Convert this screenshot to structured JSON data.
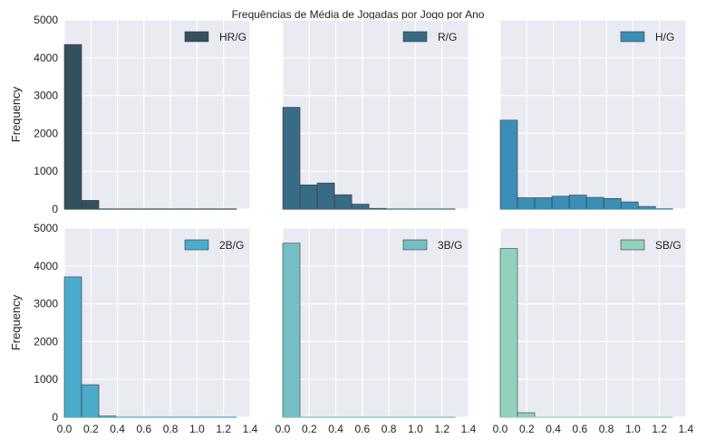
{
  "chart_data": {
    "type": "bar",
    "title": "Frequências de Média de Jogadas por Jogo por Ano",
    "ylabel": "Frequency",
    "xlim": [
      0.0,
      1.4
    ],
    "ylim": [
      0,
      5000
    ],
    "xticks": [
      "0.0",
      "0.2",
      "0.4",
      "0.6",
      "0.8",
      "1.0",
      "1.2",
      "1.4"
    ],
    "yticks": [
      "0",
      "1000",
      "2000",
      "3000",
      "4000",
      "5000"
    ],
    "grid": true,
    "legend_position": "top-right",
    "bin_edges": [
      0.0,
      0.13,
      0.26,
      0.39,
      0.52,
      0.65,
      0.78,
      0.91,
      1.04,
      1.17,
      1.3
    ],
    "series": [
      {
        "name": "HR/G",
        "color": "#34505e",
        "values": [
          4350,
          230,
          0,
          0,
          0,
          0,
          0,
          0,
          0,
          0
        ]
      },
      {
        "name": "R/G",
        "color": "#386b85",
        "values": [
          2690,
          640,
          690,
          380,
          130,
          20,
          0,
          0,
          0,
          0
        ]
      },
      {
        "name": "H/G",
        "color": "#3b8eb5",
        "values": [
          2350,
          300,
          300,
          340,
          370,
          310,
          280,
          190,
          70,
          10
        ]
      },
      {
        "name": "2B/G",
        "color": "#4aabca",
        "values": [
          3710,
          860,
          30,
          0,
          0,
          0,
          0,
          0,
          0,
          0
        ]
      },
      {
        "name": "3B/G",
        "color": "#74bfc4",
        "values": [
          4600,
          0,
          0,
          0,
          0,
          0,
          0,
          0,
          0,
          0
        ]
      },
      {
        "name": "SB/G",
        "color": "#93d0bd",
        "values": [
          4460,
          120,
          0,
          0,
          0,
          0,
          0,
          0,
          0,
          0
        ]
      }
    ]
  }
}
